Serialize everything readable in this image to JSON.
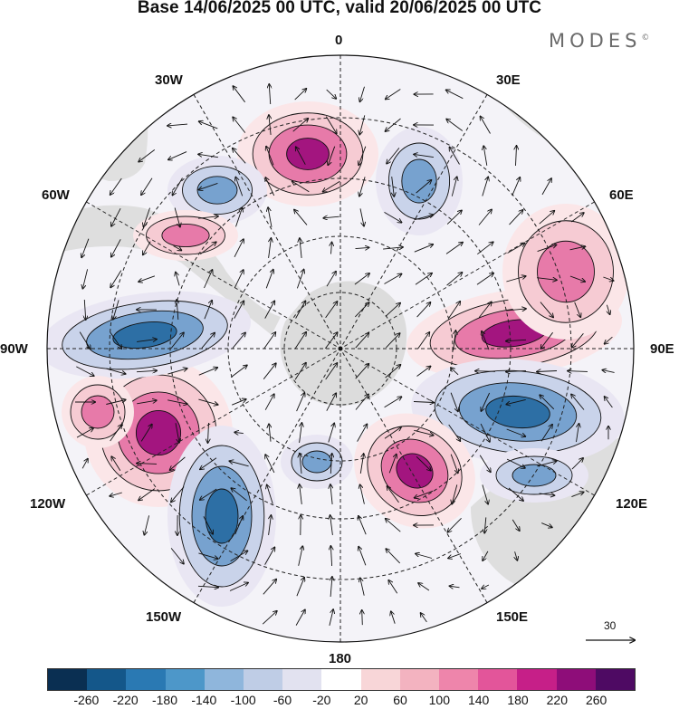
{
  "title": "Base 14/06/2025 00 UTC, valid 20/06/2025 00 UTC",
  "brand": "MODES",
  "brand_mark": "©",
  "longitude_labels": {
    "top": "0",
    "bottom": "180",
    "left": "90W",
    "right": "90E",
    "nw30": "30W",
    "nw60": "60W",
    "sw120": "120W",
    "sw150": "150W",
    "ne30": "30E",
    "ne60": "60E",
    "se120": "120E",
    "se150": "150E"
  },
  "reference_vector": {
    "label": "30"
  },
  "colorbar": {
    "colors": [
      "#0a2f52",
      "#14578a",
      "#2a79b3",
      "#4d97c9",
      "#8fb6dc",
      "#bfcde6",
      "#e2e2f0",
      "#ffffff",
      "#f8d6d8",
      "#f3b3c0",
      "#ee85ab",
      "#e3559a",
      "#c61f88",
      "#8e0d79",
      "#4e0a63"
    ],
    "tick_labels": [
      "-260",
      "-220",
      "-180",
      "-140",
      "-100",
      "-60",
      "-20",
      "20",
      "60",
      "100",
      "140",
      "180",
      "220",
      "260"
    ]
  },
  "field_colors": {
    "strong_positive": "#a3157f",
    "positive": "#e77aa9",
    "weak_positive": "#f6cbd3",
    "faint_positive": "#fbe6e8",
    "strong_negative": "#2d6fa5",
    "negative": "#77a2cf",
    "weak_negative": "#c9d3ea",
    "faint_negative": "#e9e6f3",
    "land": "#dcdcdc"
  }
}
